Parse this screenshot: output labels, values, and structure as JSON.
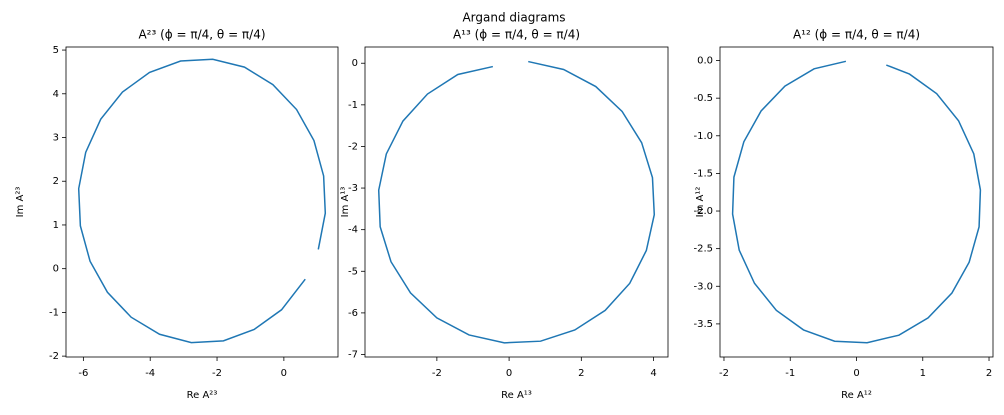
{
  "title": "Argand diagrams",
  "chart_data": [
    {
      "type": "line",
      "title": "A²³ (ϕ = π/4, θ = π/4)",
      "xlabel": "Re A²³",
      "ylabel": "Im A²³",
      "color": "#1f77b4",
      "x": [
        1.03,
        1.24,
        1.19,
        0.9,
        0.38,
        -0.33,
        -1.18,
        -2.13,
        -3.09,
        -4.02,
        -4.83,
        -5.48,
        -5.93,
        -6.14,
        -6.09,
        -5.8,
        -5.28,
        -4.57,
        -3.72,
        -2.77,
        -1.81,
        -0.89,
        -0.07,
        0.64
      ],
      "values": [
        0.44,
        1.27,
        2.12,
        2.93,
        3.64,
        4.21,
        4.61,
        4.79,
        4.75,
        4.49,
        4.04,
        3.42,
        2.66,
        1.83,
        0.98,
        0.17,
        -0.54,
        -1.11,
        -1.5,
        -1.69,
        -1.65,
        -1.39,
        -0.94,
        -0.24
      ],
      "xlim": [
        -6.52,
        1.62
      ],
      "ylim": [
        -2.02,
        5.07
      ],
      "xticks": [
        -6,
        -4,
        -2,
        0
      ],
      "yticks": [
        -2,
        -1,
        0,
        1,
        2,
        3,
        4,
        5
      ]
    },
    {
      "type": "line",
      "title": "A¹³ (ϕ = π/4, θ = π/4)",
      "xlabel": "Re A¹³",
      "ylabel": "Im A¹³",
      "color": "#1f77b4",
      "x": [
        -0.45,
        -1.42,
        -2.26,
        -2.94,
        -3.4,
        -3.61,
        -3.57,
        -3.27,
        -2.73,
        -2.0,
        -1.11,
        -0.13,
        0.87,
        1.82,
        2.66,
        3.34,
        3.8,
        4.02,
        3.97,
        3.67,
        3.13,
        2.4,
        1.51,
        0.53
      ],
      "values": [
        -0.08,
        -0.27,
        -0.74,
        -1.39,
        -2.18,
        -3.05,
        -3.93,
        -4.77,
        -5.52,
        -6.12,
        -6.53,
        -6.72,
        -6.68,
        -6.41,
        -5.94,
        -5.29,
        -4.5,
        -3.64,
        -2.75,
        -1.91,
        -1.16,
        -0.56,
        -0.15,
        0.04
      ],
      "xlim": [
        -3.99,
        4.4
      ],
      "ylim": [
        -7.06,
        0.39
      ],
      "xticks": [
        -2,
        0,
        2,
        4
      ],
      "yticks": [
        -7,
        -6,
        -5,
        -4,
        -3,
        -2,
        -1,
        0
      ]
    },
    {
      "type": "line",
      "title": "A¹² (ϕ = π/4, θ = π/4)",
      "xlabel": "Re A¹²",
      "ylabel": "Im A¹²",
      "color": "#1f77b4",
      "x": [
        -0.16,
        -0.64,
        -1.08,
        -1.44,
        -1.7,
        -1.85,
        -1.87,
        -1.77,
        -1.54,
        -1.21,
        -0.8,
        -0.33,
        0.16,
        0.64,
        1.08,
        1.44,
        1.7,
        1.85,
        1.87,
        1.77,
        1.54,
        1.21,
        0.8,
        0.45
      ],
      "values": [
        -0.01,
        -0.11,
        -0.34,
        -0.67,
        -1.08,
        -1.55,
        -2.04,
        -2.52,
        -2.96,
        -3.32,
        -3.58,
        -3.73,
        -3.75,
        -3.65,
        -3.42,
        -3.09,
        -2.68,
        -2.21,
        -1.72,
        -1.24,
        -0.8,
        -0.44,
        -0.18,
        -0.06
      ],
      "xlim": [
        -2.06,
        2.06
      ],
      "ylim": [
        -3.94,
        0.18
      ],
      "xticks": [
        -2,
        -1,
        0,
        1,
        2
      ],
      "yticks": [
        -3.5,
        {
          "value": -3,
          "label": "-3.0"
        },
        -2.5,
        {
          "value": -2,
          "label": "-2.0"
        },
        -1.5,
        {
          "value": -1,
          "label": "-1.0"
        },
        -0.5,
        {
          "value": 0,
          "label": "0.0"
        }
      ]
    }
  ]
}
